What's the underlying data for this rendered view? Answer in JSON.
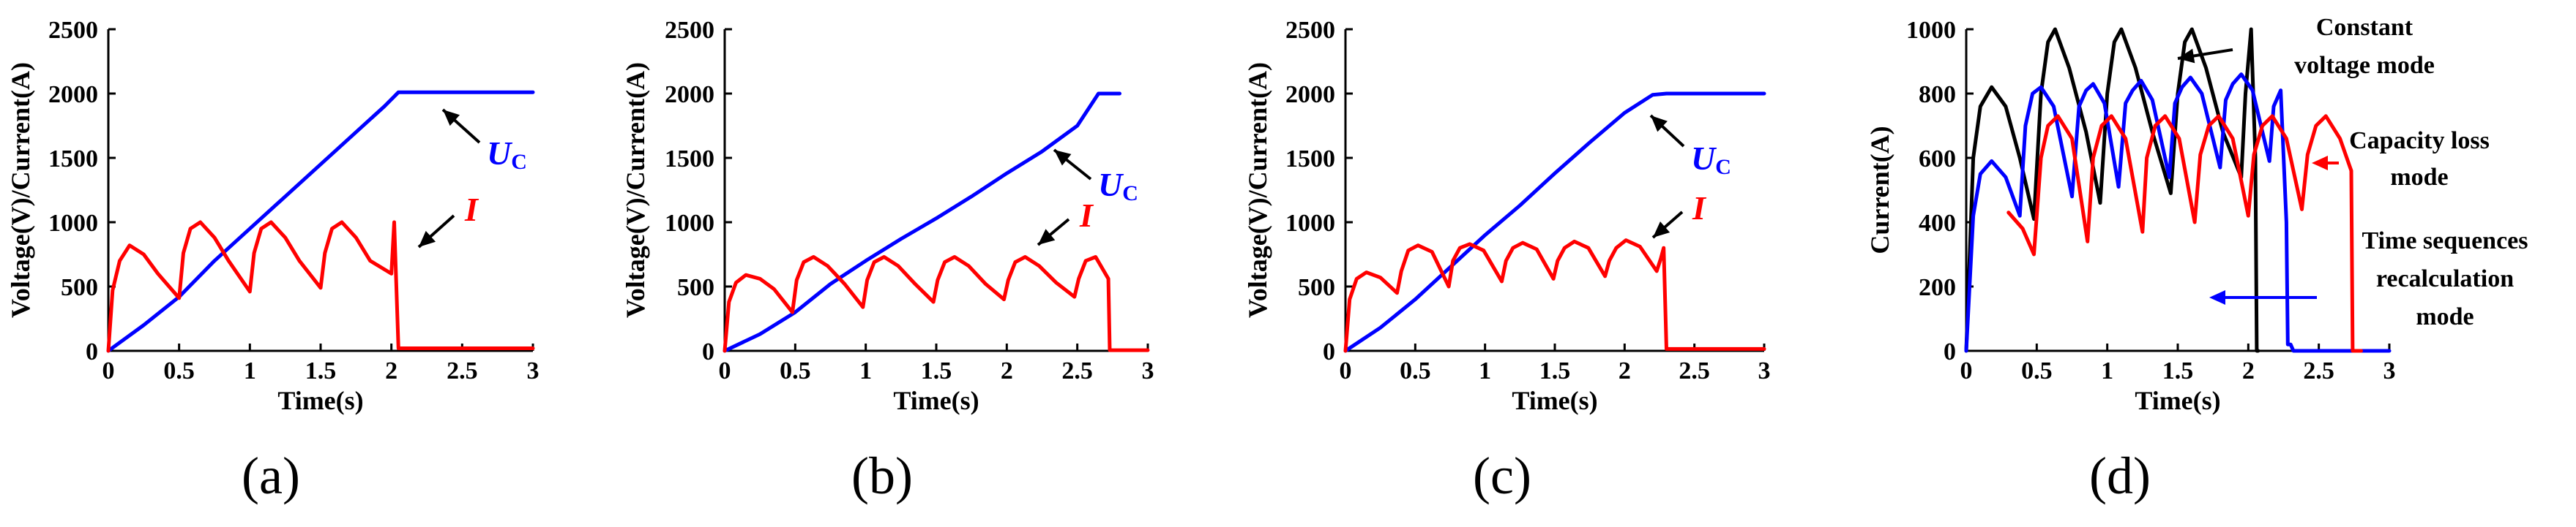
{
  "colors": {
    "uc": "#0000ff",
    "current": "#ff0000",
    "constant": "#000000",
    "capacity": "#ff0000",
    "time_seq": "#0000ff",
    "axis": "#000000"
  },
  "chart_data": [
    {
      "type": "line",
      "panel_label": "(a)",
      "xlabel": "Time(s)",
      "ylabel": "Voltage(V)/Current(A)",
      "xlim": [
        0,
        3
      ],
      "ylim": [
        0,
        2500
      ],
      "xticks": [
        0,
        0.5,
        1,
        1.5,
        2,
        2.5,
        3
      ],
      "xtick_labels": [
        "0",
        "0.5",
        "1",
        "1.5",
        "2",
        "2.5",
        "3"
      ],
      "yticks": [
        0,
        500,
        1000,
        1500,
        2000,
        2500
      ],
      "ytick_labels": [
        "0",
        "500",
        "1000",
        "1500",
        "2000",
        "2500"
      ],
      "series": [
        {
          "name": "Uc",
          "color_key": "uc",
          "x": [
            0,
            0.25,
            0.5,
            0.75,
            1.0,
            1.25,
            1.5,
            1.75,
            1.95,
            2.05,
            3.0
          ],
          "y": [
            0,
            200,
            420,
            700,
            950,
            1200,
            1450,
            1700,
            1900,
            2010,
            2010
          ]
        },
        {
          "name": "I",
          "color_key": "current",
          "x": [
            0,
            0.03,
            0.08,
            0.15,
            0.25,
            0.35,
            0.5,
            0.53,
            0.58,
            0.65,
            0.75,
            0.85,
            1.0,
            1.03,
            1.08,
            1.15,
            1.25,
            1.35,
            1.5,
            1.53,
            1.58,
            1.65,
            1.75,
            1.85,
            2.0,
            2.02,
            2.05,
            3.0
          ],
          "y": [
            0,
            470,
            700,
            820,
            750,
            600,
            410,
            760,
            950,
            1000,
            880,
            700,
            460,
            760,
            950,
            1000,
            880,
            700,
            490,
            760,
            950,
            1000,
            880,
            700,
            600,
            1000,
            20,
            20
          ]
        }
      ],
      "annotations": [
        {
          "name": "uc",
          "text": "U",
          "sub": "C"
        },
        {
          "name": "i",
          "text": "I"
        }
      ]
    },
    {
      "type": "line",
      "panel_label": "(b)",
      "xlabel": "Time(s)",
      "ylabel": "Voltage(V)/Current(A)",
      "xlim": [
        0,
        3
      ],
      "ylim": [
        0,
        2500
      ],
      "xticks": [
        0,
        0.5,
        1,
        1.5,
        2,
        2.5,
        3
      ],
      "xtick_labels": [
        "0",
        "0.5",
        "1",
        "1.5",
        "2",
        "2.5",
        "3"
      ],
      "yticks": [
        0,
        500,
        1000,
        1500,
        2000,
        2500
      ],
      "ytick_labels": [
        "0",
        "500",
        "1000",
        "1500",
        "2000",
        "2500"
      ],
      "series": [
        {
          "name": "Uc",
          "color_key": "uc",
          "x": [
            0,
            0.25,
            0.5,
            0.75,
            1.0,
            1.25,
            1.5,
            1.75,
            2.0,
            2.25,
            2.5,
            2.65,
            2.8
          ],
          "y": [
            0,
            130,
            300,
            520,
            700,
            870,
            1030,
            1200,
            1380,
            1550,
            1750,
            2000,
            2000
          ]
        },
        {
          "name": "I",
          "color_key": "current",
          "x": [
            0,
            0.03,
            0.08,
            0.15,
            0.25,
            0.35,
            0.48,
            0.51,
            0.56,
            0.63,
            0.73,
            0.85,
            0.98,
            1.01,
            1.06,
            1.13,
            1.23,
            1.35,
            1.48,
            1.51,
            1.56,
            1.63,
            1.73,
            1.85,
            1.98,
            2.01,
            2.06,
            2.13,
            2.23,
            2.35,
            2.48,
            2.51,
            2.56,
            2.63,
            2.72,
            2.73,
            3.0
          ],
          "y": [
            0,
            380,
            530,
            590,
            560,
            480,
            300,
            550,
            690,
            730,
            660,
            520,
            340,
            550,
            690,
            730,
            660,
            520,
            380,
            550,
            690,
            730,
            660,
            520,
            400,
            550,
            690,
            730,
            660,
            530,
            420,
            560,
            700,
            730,
            560,
            5,
            5
          ]
        }
      ],
      "annotations": [
        {
          "name": "uc",
          "text": "U",
          "sub": "C"
        },
        {
          "name": "i",
          "text": "I"
        }
      ]
    },
    {
      "type": "line",
      "panel_label": "(c)",
      "xlabel": "Time(s)",
      "ylabel": "Voltage(V)/Current(A)",
      "xlim": [
        0,
        3
      ],
      "ylim": [
        0,
        2500
      ],
      "xticks": [
        0,
        0.5,
        1,
        1.5,
        2,
        2.5,
        3
      ],
      "xtick_labels": [
        "0",
        "0.5",
        "1",
        "1.5",
        "2",
        "2.5",
        "3"
      ],
      "yticks": [
        0,
        500,
        1000,
        1500,
        2000,
        2500
      ],
      "ytick_labels": [
        "0",
        "500",
        "1000",
        "1500",
        "2000",
        "2500"
      ],
      "series": [
        {
          "name": "Uc",
          "color_key": "uc",
          "x": [
            0,
            0.25,
            0.5,
            0.75,
            1.0,
            1.25,
            1.5,
            1.75,
            2.0,
            2.2,
            2.3,
            3.0
          ],
          "y": [
            0,
            180,
            400,
            650,
            900,
            1130,
            1380,
            1620,
            1850,
            1990,
            2000,
            2000
          ]
        },
        {
          "name": "I",
          "color_key": "current",
          "x": [
            0,
            0.03,
            0.08,
            0.15,
            0.25,
            0.37,
            0.4,
            0.45,
            0.52,
            0.62,
            0.74,
            0.77,
            0.82,
            0.89,
            0.99,
            1.12,
            1.15,
            1.2,
            1.27,
            1.37,
            1.49,
            1.52,
            1.57,
            1.64,
            1.74,
            1.86,
            1.89,
            1.94,
            2.01,
            2.11,
            2.23,
            2.26,
            2.28,
            2.3,
            3.0
          ],
          "y": [
            0,
            400,
            560,
            610,
            570,
            450,
            620,
            780,
            820,
            770,
            500,
            700,
            800,
            830,
            780,
            540,
            700,
            800,
            840,
            790,
            560,
            700,
            800,
            850,
            800,
            580,
            700,
            800,
            860,
            810,
            620,
            720,
            800,
            15,
            15
          ]
        }
      ],
      "annotations": [
        {
          "name": "uc",
          "text": "U",
          "sub": "C"
        },
        {
          "name": "i",
          "text": "I"
        }
      ]
    },
    {
      "type": "line",
      "panel_label": "(d)",
      "xlabel": "Time(s)",
      "ylabel": "Current(A)",
      "xlim": [
        0,
        3
      ],
      "ylim": [
        0,
        1000
      ],
      "xticks": [
        0,
        0.5,
        1,
        1.5,
        2,
        2.5,
        3
      ],
      "xtick_labels": [
        "0",
        "0.5",
        "1",
        "1.5",
        "2",
        "2.5",
        "3"
      ],
      "yticks": [
        0,
        200,
        400,
        600,
        800,
        1000
      ],
      "ytick_labels": [
        "0",
        "200",
        "400",
        "600",
        "800",
        "1000"
      ],
      "series": [
        {
          "name": "Constant voltage mode",
          "color_key": "constant",
          "x": [
            0,
            0.05,
            0.1,
            0.18,
            0.28,
            0.38,
            0.48,
            0.53,
            0.58,
            0.63,
            0.73,
            0.85,
            0.95,
            1.0,
            1.05,
            1.1,
            1.2,
            1.32,
            1.45,
            1.5,
            1.55,
            1.6,
            1.7,
            1.82,
            1.95,
            1.98,
            2.02,
            2.05,
            2.06,
            2.07
          ],
          "y": [
            0,
            600,
            760,
            820,
            760,
            600,
            410,
            800,
            960,
            1000,
            880,
            680,
            460,
            800,
            960,
            1000,
            880,
            680,
            490,
            800,
            960,
            1000,
            880,
            680,
            540,
            800,
            1000,
            600,
            0,
            0
          ]
        },
        {
          "name": "Time sequences recalculation mode",
          "color_key": "time_seq",
          "x": [
            0,
            0.05,
            0.1,
            0.18,
            0.28,
            0.38,
            0.42,
            0.47,
            0.53,
            0.62,
            0.75,
            0.8,
            0.85,
            0.9,
            0.98,
            1.08,
            1.13,
            1.18,
            1.24,
            1.32,
            1.44,
            1.48,
            1.53,
            1.59,
            1.67,
            1.8,
            1.84,
            1.89,
            1.95,
            2.03,
            2.15,
            2.18,
            2.23,
            2.27,
            2.28,
            2.3,
            2.32,
            2.7,
            3.0
          ],
          "y": [
            0,
            420,
            550,
            590,
            540,
            420,
            700,
            800,
            820,
            760,
            480,
            760,
            810,
            830,
            770,
            510,
            770,
            810,
            840,
            780,
            540,
            770,
            820,
            850,
            800,
            570,
            780,
            830,
            860,
            810,
            590,
            760,
            810,
            400,
            20,
            20,
            0,
            0,
            0
          ]
        },
        {
          "name": "Capacity loss mode",
          "color_key": "capacity",
          "x": [
            0.3,
            0.4,
            0.48,
            0.53,
            0.58,
            0.65,
            0.75,
            0.86,
            0.9,
            0.96,
            1.03,
            1.13,
            1.25,
            1.28,
            1.34,
            1.41,
            1.51,
            1.62,
            1.66,
            1.72,
            1.79,
            1.89,
            2.0,
            2.04,
            2.1,
            2.17,
            2.27,
            2.38,
            2.42,
            2.48,
            2.55,
            2.65,
            2.73,
            2.74,
            2.8,
            2.8
          ],
          "y": [
            430,
            380,
            300,
            600,
            700,
            730,
            660,
            340,
            600,
            700,
            730,
            660,
            370,
            600,
            700,
            730,
            660,
            400,
            610,
            700,
            730,
            660,
            420,
            610,
            700,
            730,
            660,
            440,
            610,
            700,
            730,
            660,
            560,
            0,
            0,
            0
          ]
        }
      ],
      "annotations": [
        {
          "name": "constant",
          "lines": [
            "Constant",
            "voltage mode"
          ]
        },
        {
          "name": "capacity",
          "lines": [
            "Capacity loss",
            "mode"
          ]
        },
        {
          "name": "time_seq",
          "lines": [
            "Time sequences",
            "recalculation",
            "mode"
          ]
        }
      ]
    }
  ]
}
